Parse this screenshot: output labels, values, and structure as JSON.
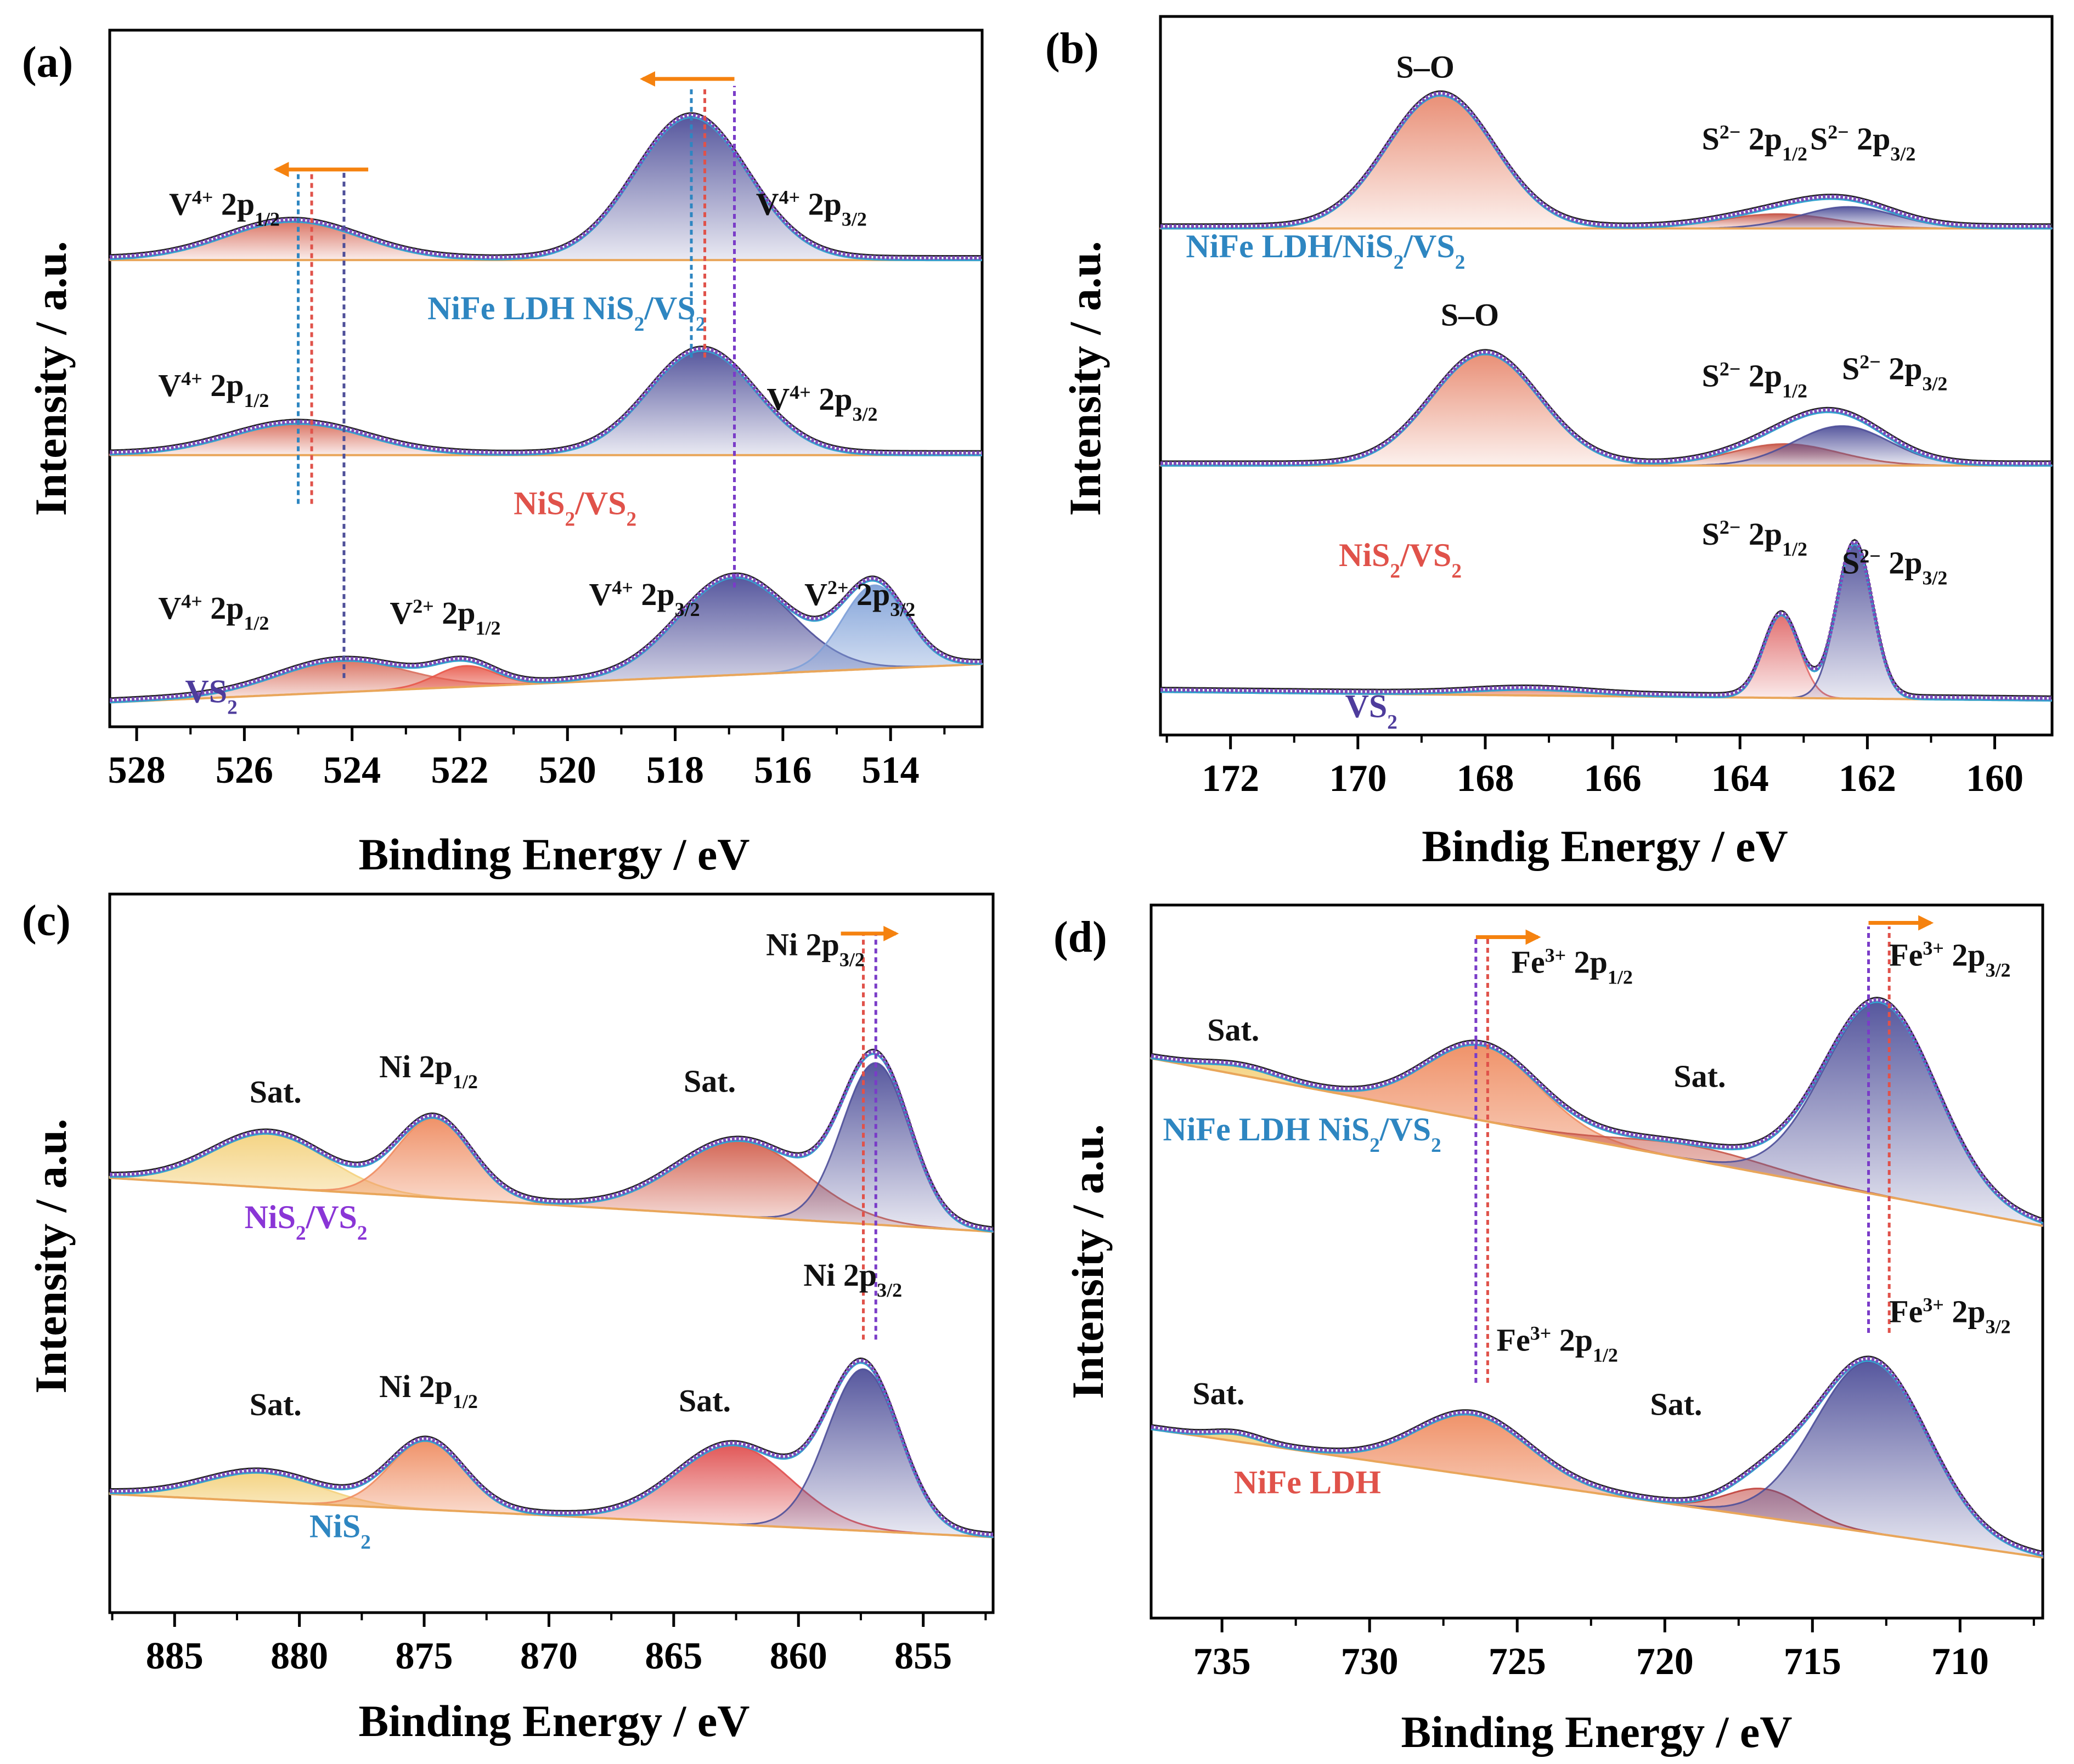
{
  "chart_data": [
    {
      "type": "line",
      "id": "a",
      "panel_label": "(a)",
      "xlabel": "Binding Energy / eV",
      "ylabel": "Intensity / a.u.",
      "xlim": [
        528.5,
        512.3
      ],
      "xticks": [
        528,
        526,
        524,
        522,
        520,
        518,
        516,
        514
      ],
      "tick_labels": [
        "528",
        "526",
        "524",
        "522",
        "520",
        "518",
        "516",
        "514"
      ],
      "ylim": [
        0,
        1
      ],
      "series": [
        {
          "name": "NiFe LDH NiS2/VS2",
          "name_main": "NiFe LDH NiS",
          "name_sub": "2",
          "name_tail": "/VS",
          "name_sub2": "2",
          "label_color": "#2e86c1",
          "label_x": 522.6,
          "label_y": 0.585,
          "offset": 0.67,
          "bg_start": 0.0,
          "bg_end": 0.0,
          "peaks": [
            {
              "label": "V4+ 2p1/2",
              "center": 525.1,
              "height": 0.055,
              "width": 1.25,
              "color": "#d9705f"
            },
            {
              "label": "V4+ 2p3/2",
              "center": 517.7,
              "height": 0.205,
              "width": 1.05,
              "color": "#4e4f99"
            }
          ]
        },
        {
          "name": "NiS2/VS2",
          "name_main": "NiS",
          "name_sub": "2",
          "name_tail": "/VS",
          "name_sub2": "2",
          "label_color": "#e0524a",
          "label_x": 521.0,
          "label_y": 0.305,
          "offset": 0.39,
          "bg_start": 0.0,
          "bg_end": 0.0,
          "peaks": [
            {
              "label": "V4+ 2p1/2",
              "center": 525.0,
              "height": 0.045,
              "width": 1.25,
              "color": "#d9705f"
            },
            {
              "label": "V4+ 2p3/2",
              "center": 517.5,
              "height": 0.15,
              "width": 1.0,
              "color": "#4e4f99"
            }
          ]
        },
        {
          "name": "VS2",
          "name_main": "VS",
          "name_sub": "2",
          "name_tail": "",
          "name_sub2": "",
          "label_color": "#4e3c9c",
          "label_x": 527.1,
          "label_y": 0.035,
          "offset": 0.035,
          "bg_start": 0.0,
          "bg_end": 0.055,
          "peaks": [
            {
              "label": "V4+ 2p1/2",
              "center": 524.2,
              "height": 0.045,
              "width": 1.2,
              "color": "#d9705f"
            },
            {
              "label": "V2+ 2p1/2",
              "center": 521.9,
              "height": 0.03,
              "width": 0.55,
              "color": "#e8584a"
            },
            {
              "label": "V4+ 2p3/2",
              "center": 516.9,
              "height": 0.14,
              "width": 1.05,
              "color": "#4e4f99"
            },
            {
              "label": "V2+ 2p3/2",
              "center": 514.3,
              "height": 0.12,
              "width": 0.6,
              "color": "#7ea0d8"
            }
          ]
        }
      ],
      "annotations": [
        {
          "head": "V",
          "sup": "4+",
          "mid": " 2p",
          "sub": "1/2",
          "x": 527.4,
          "y": 0.735
        },
        {
          "head": "V",
          "sup": "4+",
          "mid": " 2p",
          "sub": "3/2",
          "x": 516.5,
          "y": 0.735
        },
        {
          "head": "V",
          "sup": "4+",
          "mid": " 2p",
          "sub": "1/2",
          "x": 527.6,
          "y": 0.475
        },
        {
          "head": "V",
          "sup": "4+",
          "mid": " 2p",
          "sub": "3/2",
          "x": 516.3,
          "y": 0.455
        },
        {
          "head": "V",
          "sup": "4+",
          "mid": " 2p",
          "sub": "1/2",
          "x": 527.6,
          "y": 0.155
        },
        {
          "head": "V",
          "sup": "2+",
          "mid": " 2p",
          "sub": "1/2",
          "x": 523.3,
          "y": 0.148
        },
        {
          "head": "V",
          "sup": "4+",
          "mid": " 2p",
          "sub": "3/2",
          "x": 519.6,
          "y": 0.175
        },
        {
          "head": "V",
          "sup": "2+",
          "mid": " 2p",
          "sub": "3/2",
          "x": 515.6,
          "y": 0.175
        }
      ],
      "guides": [
        {
          "x": 525.0,
          "y1": 0.32,
          "y2": 0.8,
          "color": "#2e86c1"
        },
        {
          "x": 524.75,
          "y1": 0.32,
          "y2": 0.8,
          "color": "#e0524a"
        },
        {
          "x": 524.15,
          "y1": 0.07,
          "y2": 0.8,
          "color": "#4e4f99"
        },
        {
          "x": 517.7,
          "y1": 0.53,
          "y2": 0.92,
          "color": "#2e86c1"
        },
        {
          "x": 517.45,
          "y1": 0.53,
          "y2": 0.92,
          "color": "#e0524a"
        },
        {
          "x": 516.9,
          "y1": 0.2,
          "y2": 0.92,
          "color": "#7a3cc8"
        }
      ],
      "arrows": [
        {
          "x_from": 523.7,
          "x_to": 525.4,
          "y": 0.8
        },
        {
          "x_from": 516.9,
          "x_to": 518.6,
          "y": 0.93
        }
      ]
    },
    {
      "type": "line",
      "id": "b",
      "panel_label": "(b)",
      "xlabel": "Bindig Energy / eV",
      "ylabel": "Intensity / a.u.",
      "xlim": [
        173.1,
        159.1
      ],
      "xticks": [
        172,
        170,
        168,
        166,
        164,
        162,
        160
      ],
      "tick_labels": [
        "172",
        "170",
        "168",
        "166",
        "164",
        "162",
        "160"
      ],
      "ylim": [
        0,
        1
      ],
      "series": [
        {
          "name": "NiFe LDH/NiS2/VS2",
          "name_main": "NiFe LDH/NiS",
          "name_sub": "2",
          "name_tail": "/VS",
          "name_sub2": "2",
          "label_color": "#2e86c1",
          "label_x": 172.7,
          "label_y": 0.665,
          "offset": 0.705,
          "bg_start": 0.0,
          "bg_end": 0.0,
          "peaks": [
            {
              "label": "S-O",
              "center": 168.7,
              "height": 0.185,
              "width": 0.85,
              "color": "#e88a70"
            },
            {
              "label": "S2- 2p1/2",
              "center": 163.4,
              "height": 0.02,
              "width": 0.9,
              "color": "#c8584a"
            },
            {
              "label": "S2- 2p3/2",
              "center": 162.3,
              "height": 0.03,
              "width": 0.75,
              "color": "#4e4f99"
            }
          ]
        },
        {
          "name": "NiS2/VS2",
          "name_main": "NiS",
          "name_sub": "2",
          "name_tail": "/VS",
          "name_sub2": "2",
          "label_color": "#e0524a",
          "label_x": 170.3,
          "label_y": 0.235,
          "offset": 0.375,
          "bg_start": 0.0,
          "bg_end": 0.0,
          "peaks": [
            {
              "label": "S-O",
              "center": 168.0,
              "height": 0.155,
              "width": 0.85,
              "color": "#e88a70"
            },
            {
              "label": "S2- 2p1/2",
              "center": 163.3,
              "height": 0.03,
              "width": 0.85,
              "color": "#c8584a"
            },
            {
              "label": "S2- 2p3/2",
              "center": 162.4,
              "height": 0.055,
              "width": 0.75,
              "color": "#4e4f99"
            }
          ]
        },
        {
          "name": "VS2",
          "name_main": "VS",
          "name_sub": "2",
          "name_tail": "",
          "name_sub2": "",
          "label_color": "#4e3c9c",
          "label_x": 170.2,
          "label_y": 0.025,
          "offset": 0.06,
          "bg_start": 0.0,
          "bg_end": -0.012,
          "peaks": [
            {
              "label": "S-O",
              "center": 167.3,
              "height": 0.008,
              "width": 0.9,
              "color": "#e88a70"
            },
            {
              "label": "S2- 2p1/2",
              "center": 163.35,
              "height": 0.115,
              "width": 0.28,
              "color": "#e06a6a"
            },
            {
              "label": "S2- 2p3/2",
              "center": 162.2,
              "height": 0.215,
              "width": 0.28,
              "color": "#4e4f99"
            }
          ]
        }
      ],
      "annotations": [
        {
          "head": "S",
          "sup": "",
          "mid": "–O",
          "sub": "",
          "x": 169.4,
          "y": 0.915
        },
        {
          "head": "S",
          "sup": "2−",
          "mid": " 2p",
          "sub": "1/2",
          "x": 164.6,
          "y": 0.815
        },
        {
          "head": "S",
          "sup": "2−",
          "mid": " 2p",
          "sub": "3/2",
          "x": 162.9,
          "y": 0.815
        },
        {
          "head": "S",
          "sup": "",
          "mid": "–O",
          "sub": "",
          "x": 168.7,
          "y": 0.57
        },
        {
          "head": "S",
          "sup": "2−",
          "mid": " 2p",
          "sub": "1/2",
          "x": 164.6,
          "y": 0.485
        },
        {
          "head": "S",
          "sup": "2−",
          "mid": " 2p",
          "sub": "3/2",
          "x": 162.4,
          "y": 0.495
        },
        {
          "head": "S",
          "sup": "2−",
          "mid": " 2p",
          "sub": "1/2",
          "x": 164.6,
          "y": 0.265
        },
        {
          "head": "S",
          "sup": "2−",
          "mid": " 2p",
          "sub": "3/2",
          "x": 162.4,
          "y": 0.225
        }
      ],
      "guides": [],
      "arrows": []
    },
    {
      "type": "line",
      "id": "c",
      "panel_label": "(c)",
      "xlabel": "Binding Energy / eV",
      "ylabel": "Intensity / a.u.",
      "xlim": [
        887.6,
        852.2
      ],
      "xticks": [
        885,
        880,
        875,
        870,
        865,
        860,
        855
      ],
      "tick_labels": [
        "885",
        "880",
        "875",
        "870",
        "865",
        "860",
        "855"
      ],
      "ylim": [
        0,
        1
      ],
      "series": [
        {
          "name": "NiS2/VS2",
          "name_main": "NiS",
          "name_sub": "2",
          "name_tail": "/VS",
          "name_sub2": "2",
          "label_color": "#8a35d6",
          "label_x": 882.2,
          "label_y": 0.535,
          "offset": 0.605,
          "bg_start": 0.0,
          "bg_end": -0.075,
          "peaks": [
            {
              "label": "Sat.",
              "center": 881.2,
              "height": 0.075,
              "width": 2.3,
              "color": "#f4d27e"
            },
            {
              "label": "Ni 2p1/2",
              "center": 874.6,
              "height": 0.11,
              "width": 1.5,
              "color": "#ef8d62"
            },
            {
              "label": "Sat.",
              "center": 862.3,
              "height": 0.105,
              "width": 2.6,
              "color": "#d2604e"
            },
            {
              "label": "Ni 2p3/2",
              "center": 856.9,
              "height": 0.225,
              "width": 1.35,
              "color": "#4e4f99"
            }
          ]
        },
        {
          "name": "NiS2",
          "name_main": "NiS",
          "name_sub": "2",
          "name_tail": "",
          "name_sub2": "",
          "label_color": "#2e86c1",
          "label_x": 879.6,
          "label_y": 0.105,
          "offset": 0.165,
          "bg_start": 0.0,
          "bg_end": -0.06,
          "peaks": [
            {
              "label": "Sat.",
              "center": 881.5,
              "height": 0.04,
              "width": 2.3,
              "color": "#f4d27e"
            },
            {
              "label": "Ni 2p1/2",
              "center": 874.9,
              "height": 0.095,
              "width": 1.5,
              "color": "#ef8d62"
            },
            {
              "label": "Sat.",
              "center": 862.6,
              "height": 0.11,
              "width": 2.3,
              "color": "#e05050"
            },
            {
              "label": "Ni 2p3/2",
              "center": 857.4,
              "height": 0.225,
              "width": 1.45,
              "color": "#4e4f99"
            }
          ]
        }
      ],
      "annotations": [
        {
          "head": "Sat.",
          "sup": "",
          "mid": "",
          "sub": "",
          "x": 882.0,
          "y": 0.71
        },
        {
          "head": "Ni 2p",
          "sup": "",
          "mid": "",
          "sub": "1/2",
          "x": 876.8,
          "y": 0.745
        },
        {
          "head": "Sat.",
          "sup": "",
          "mid": "",
          "sub": "",
          "x": 864.6,
          "y": 0.725
        },
        {
          "head": "Ni 2p",
          "sup": "",
          "mid": "",
          "sub": "3/2",
          "x": 861.3,
          "y": 0.915
        },
        {
          "head": "Sat.",
          "sup": "",
          "mid": "",
          "sub": "",
          "x": 882.0,
          "y": 0.275
        },
        {
          "head": "Ni 2p",
          "sup": "",
          "mid": "",
          "sub": "1/2",
          "x": 876.8,
          "y": 0.3
        },
        {
          "head": "Sat.",
          "sup": "",
          "mid": "",
          "sub": "",
          "x": 864.8,
          "y": 0.28
        },
        {
          "head": "Ni 2p",
          "sup": "",
          "mid": "",
          "sub": "3/2",
          "x": 859.8,
          "y": 0.455
        }
      ],
      "guides": [
        {
          "x": 857.4,
          "y1": 0.38,
          "y2": 0.945,
          "color": "#e0524a"
        },
        {
          "x": 856.9,
          "y1": 0.38,
          "y2": 0.945,
          "color": "#7a3cc8"
        }
      ],
      "arrows": [
        {
          "x_from": 858.3,
          "x_to": 856.1,
          "y": 0.945
        }
      ]
    },
    {
      "type": "line",
      "id": "d",
      "panel_label": "(d)",
      "xlabel": "Binding Energy / eV",
      "ylabel": "Intensity / a.u.",
      "xlim": [
        737.4,
        707.2
      ],
      "xticks": [
        735,
        730,
        725,
        720,
        715,
        710
      ],
      "tick_labels": [
        "735",
        "730",
        "725",
        "720",
        "715",
        "710"
      ],
      "ylim": [
        0,
        1
      ],
      "series": [
        {
          "name": "NiFe LDH NiS2/VS2",
          "name_main": "NiFe LDH NiS",
          "name_sub": "2",
          "name_tail": "/VS",
          "name_sub2": "2",
          "label_color": "#2e86c1",
          "label_x": 737.0,
          "label_y": 0.67,
          "offset": 0.785,
          "bg_start": 0.0,
          "bg_end": -0.235,
          "peaks": [
            {
              "label": "Sat.",
              "center": 734.3,
              "height": 0.012,
              "width": 1.2,
              "color": "#f4d27e"
            },
            {
              "label": "Fe3+ 2p1/2",
              "center": 726.2,
              "height": 0.105,
              "width": 1.9,
              "color": "#ef8d62"
            },
            {
              "label": "Sat.",
              "center": 719.0,
              "height": 0.02,
              "width": 2.5,
              "color": "#c8584a"
            },
            {
              "label": "Fe3+ 2p3/2",
              "center": 712.7,
              "height": 0.27,
              "width": 1.9,
              "color": "#4e4f99"
            }
          ]
        },
        {
          "name": "NiFe LDH",
          "name_main": "NiFe LDH",
          "name_sub": "",
          "name_tail": "",
          "name_sub2": "",
          "label_color": "#e0524a",
          "label_x": 734.6,
          "label_y": 0.175,
          "offset": 0.265,
          "bg_start": 0.0,
          "bg_end": -0.18,
          "peaks": [
            {
              "label": "Sat.",
              "center": 734.5,
              "height": 0.01,
              "width": 0.8,
              "color": "#f4d27e"
            },
            {
              "label": "Fe3+ 2p1/2",
              "center": 726.5,
              "height": 0.085,
              "width": 1.9,
              "color": "#ef8d62"
            },
            {
              "label": "Sat.",
              "center": 716.6,
              "height": 0.04,
              "width": 1.3,
              "color": "#c0403a"
            },
            {
              "label": "Fe3+ 2p3/2",
              "center": 713.0,
              "height": 0.24,
              "width": 1.9,
              "color": "#4e4f99"
            }
          ]
        }
      ],
      "annotations": [
        {
          "head": "Sat.",
          "sup": "",
          "mid": "",
          "sub": "",
          "x": 735.5,
          "y": 0.81
        },
        {
          "head": "Fe",
          "sup": "3+",
          "mid": " 2p",
          "sub": "1/2",
          "x": 725.2,
          "y": 0.905
        },
        {
          "head": "Sat.",
          "sup": "",
          "mid": "",
          "sub": "",
          "x": 719.7,
          "y": 0.745
        },
        {
          "head": "Fe",
          "sup": "3+",
          "mid": " 2p",
          "sub": "3/2",
          "x": 712.4,
          "y": 0.915
        },
        {
          "head": "Sat.",
          "sup": "",
          "mid": "",
          "sub": "",
          "x": 736.0,
          "y": 0.3
        },
        {
          "head": "Fe",
          "sup": "3+",
          "mid": " 2p",
          "sub": "1/2",
          "x": 725.7,
          "y": 0.375
        },
        {
          "head": "Sat.",
          "sup": "",
          "mid": "",
          "sub": "",
          "x": 720.5,
          "y": 0.285
        },
        {
          "head": "Fe",
          "sup": "3+",
          "mid": " 2p",
          "sub": "3/2",
          "x": 712.4,
          "y": 0.415
        }
      ],
      "guides": [
        {
          "x": 726.4,
          "y1": 0.33,
          "y2": 0.955,
          "color": "#7a3cc8"
        },
        {
          "x": 726.0,
          "y1": 0.33,
          "y2": 0.955,
          "color": "#e0524a"
        },
        {
          "x": 713.1,
          "y1": 0.4,
          "y2": 0.97,
          "color": "#7a3cc8"
        },
        {
          "x": 712.4,
          "y1": 0.4,
          "y2": 0.97,
          "color": "#e0524a"
        }
      ],
      "arrows": [
        {
          "x_from": 726.4,
          "x_to": 724.3,
          "y": 0.955
        },
        {
          "x_from": 713.1,
          "x_to": 711.0,
          "y": 0.975
        }
      ]
    }
  ],
  "colors": {
    "envelope": "#7b4bb8",
    "background_line": "#e9a65a",
    "sum_line": "#33a3cf",
    "raw_line": "#222222",
    "arrow": "#f5820f",
    "axis": "#000000"
  }
}
